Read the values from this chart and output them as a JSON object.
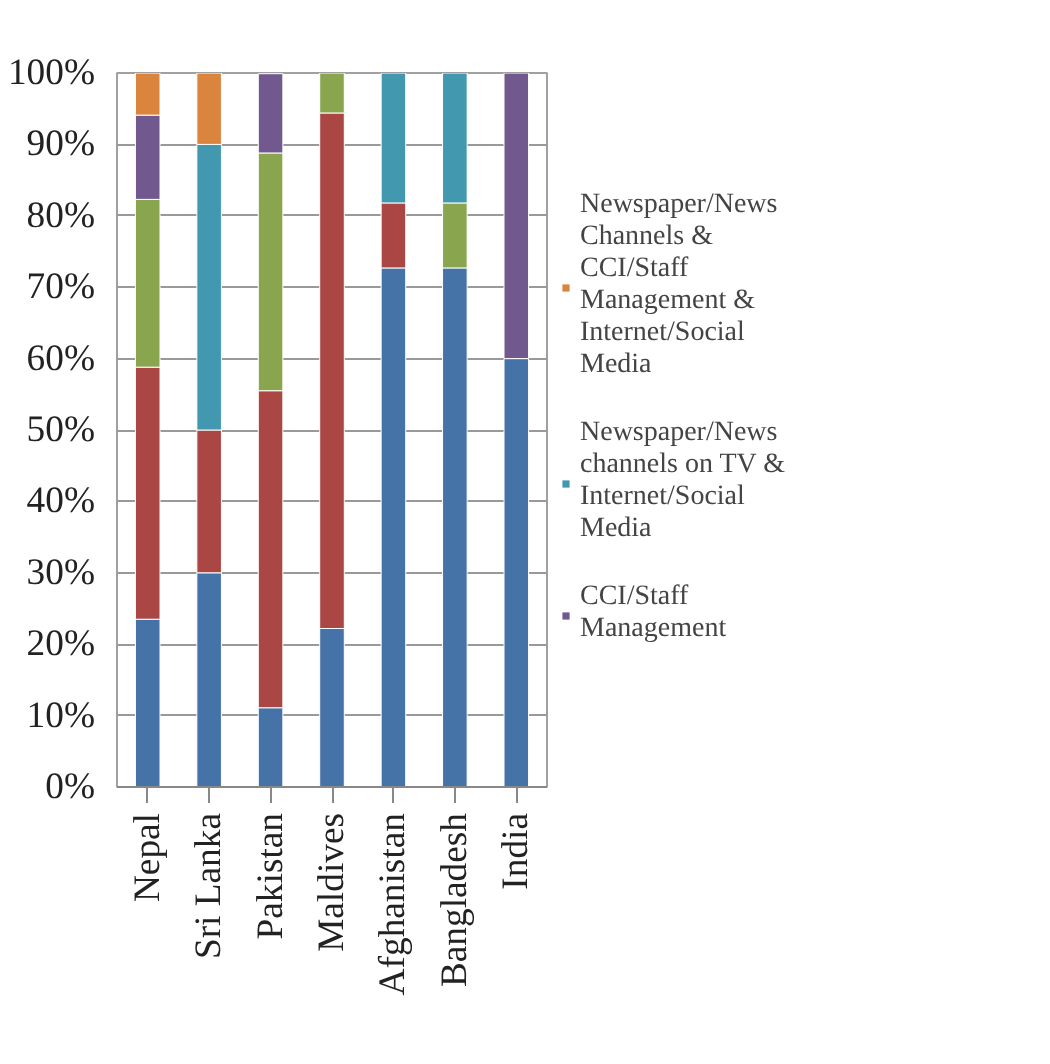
{
  "chart_data": {
    "type": "bar",
    "stacked": true,
    "categories": [
      "Nepal",
      "Sri Lanka",
      "Pakistan",
      "Maldives",
      "Afghanistan",
      "Bangladesh",
      "India"
    ],
    "ylim": [
      0,
      100
    ],
    "yticks": [
      {
        "value": 0,
        "label": "0%"
      },
      {
        "value": 10,
        "label": "10%"
      },
      {
        "value": 20,
        "label": "20%"
      },
      {
        "value": 30,
        "label": "30%"
      },
      {
        "value": 40,
        "label": "40%"
      },
      {
        "value": 50,
        "label": "50%"
      },
      {
        "value": 60,
        "label": "60%"
      },
      {
        "value": 70,
        "label": "70%"
      },
      {
        "value": 80,
        "label": "80%"
      },
      {
        "value": 90,
        "label": "90%"
      },
      {
        "value": 100,
        "label": "100%"
      }
    ],
    "grid": "y",
    "legend": "right",
    "series": [
      {
        "color": "#4572a7",
        "values": [
          23.5,
          30,
          11.1,
          22.2,
          72.7,
          72.7,
          60
        ]
      },
      {
        "color": "#aa4643",
        "values": [
          35.3,
          20,
          44.4,
          72.2,
          9.1,
          null,
          null
        ]
      },
      {
        "color": "#89a54e",
        "values": [
          23.5,
          null,
          33.3,
          5.6,
          null,
          9.1,
          null
        ]
      },
      {
        "name": "CCI/Staff Management",
        "color": "#71588f",
        "values": [
          11.8,
          null,
          11.1,
          null,
          null,
          null,
          40
        ]
      },
      {
        "name": "Newspaper/News channels on TV & Internet/Social Media",
        "color": "#4198af",
        "values": [
          null,
          40,
          null,
          null,
          18.2,
          18.2,
          null
        ]
      },
      {
        "name": "Newspaper/News Channels & CCI/Staff Management & Internet/Social Media",
        "color": "#db843d",
        "values": [
          5.9,
          10,
          null,
          null,
          null,
          null,
          null
        ]
      }
    ]
  }
}
